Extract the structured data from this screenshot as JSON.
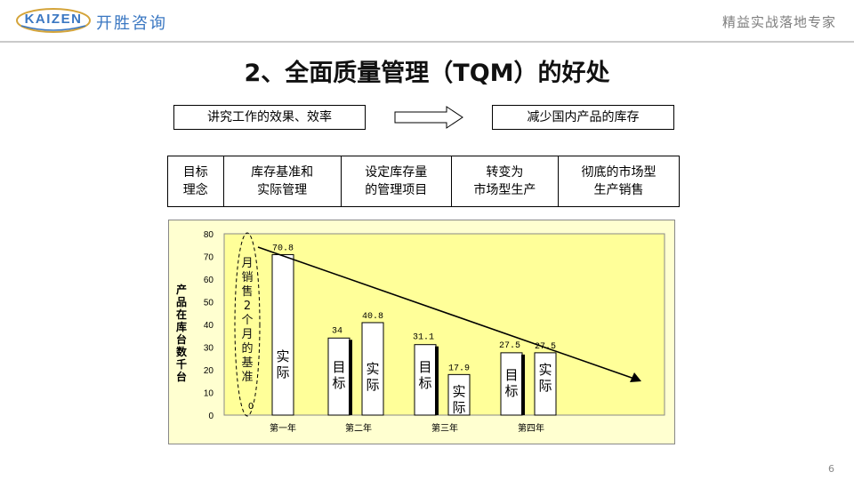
{
  "header": {
    "logo_en": "KAIZEN",
    "logo_cn": "开胜咨询",
    "tagline": "精益实战落地专家"
  },
  "slide": {
    "title": "2、全面质量管理（TQM）的好处",
    "flow_left": "讲究工作的效果、效率",
    "flow_right": "减少国内产品的库存",
    "stages": [
      "目标\n理念",
      "库存基准和\n实际管理",
      "设定库存量\n的管理项目",
      "转变为\n市场型生产",
      "彻底的市场型\n生产销售"
    ],
    "page_number": "6"
  },
  "colors": {
    "chart_bg": "#ffffd0",
    "plot_bg": "#ffff99",
    "brand": "#3a77c2",
    "bar_fill": "#ffffff"
  },
  "chart_data": {
    "type": "bar",
    "ylabel": "产品在库台数千台",
    "ylim": [
      0,
      80
    ],
    "y_ticks": [
      "0",
      "10",
      "20",
      "30",
      "40",
      "50",
      "60",
      "70",
      "80"
    ],
    "categories": [
      "第一年",
      "第二年",
      "第三年",
      "第四年"
    ],
    "series": [
      {
        "name": "目标",
        "values": [
          null,
          34,
          31.1,
          27.5
        ]
      },
      {
        "name": "实际",
        "values": [
          70.8,
          40.8,
          17.9,
          27.5
        ]
      }
    ],
    "value_labels": {
      "target": [
        null,
        "34",
        "31.1",
        "27.5"
      ],
      "actual": [
        "70.8",
        "40.8",
        "17.9",
        "27.5"
      ]
    },
    "bar_text_target": "目标",
    "bar_text_actual": "实际",
    "baseline_note": "月销售2个月的基准",
    "baseline_value": 0,
    "trend_arrow": "decreasing"
  }
}
